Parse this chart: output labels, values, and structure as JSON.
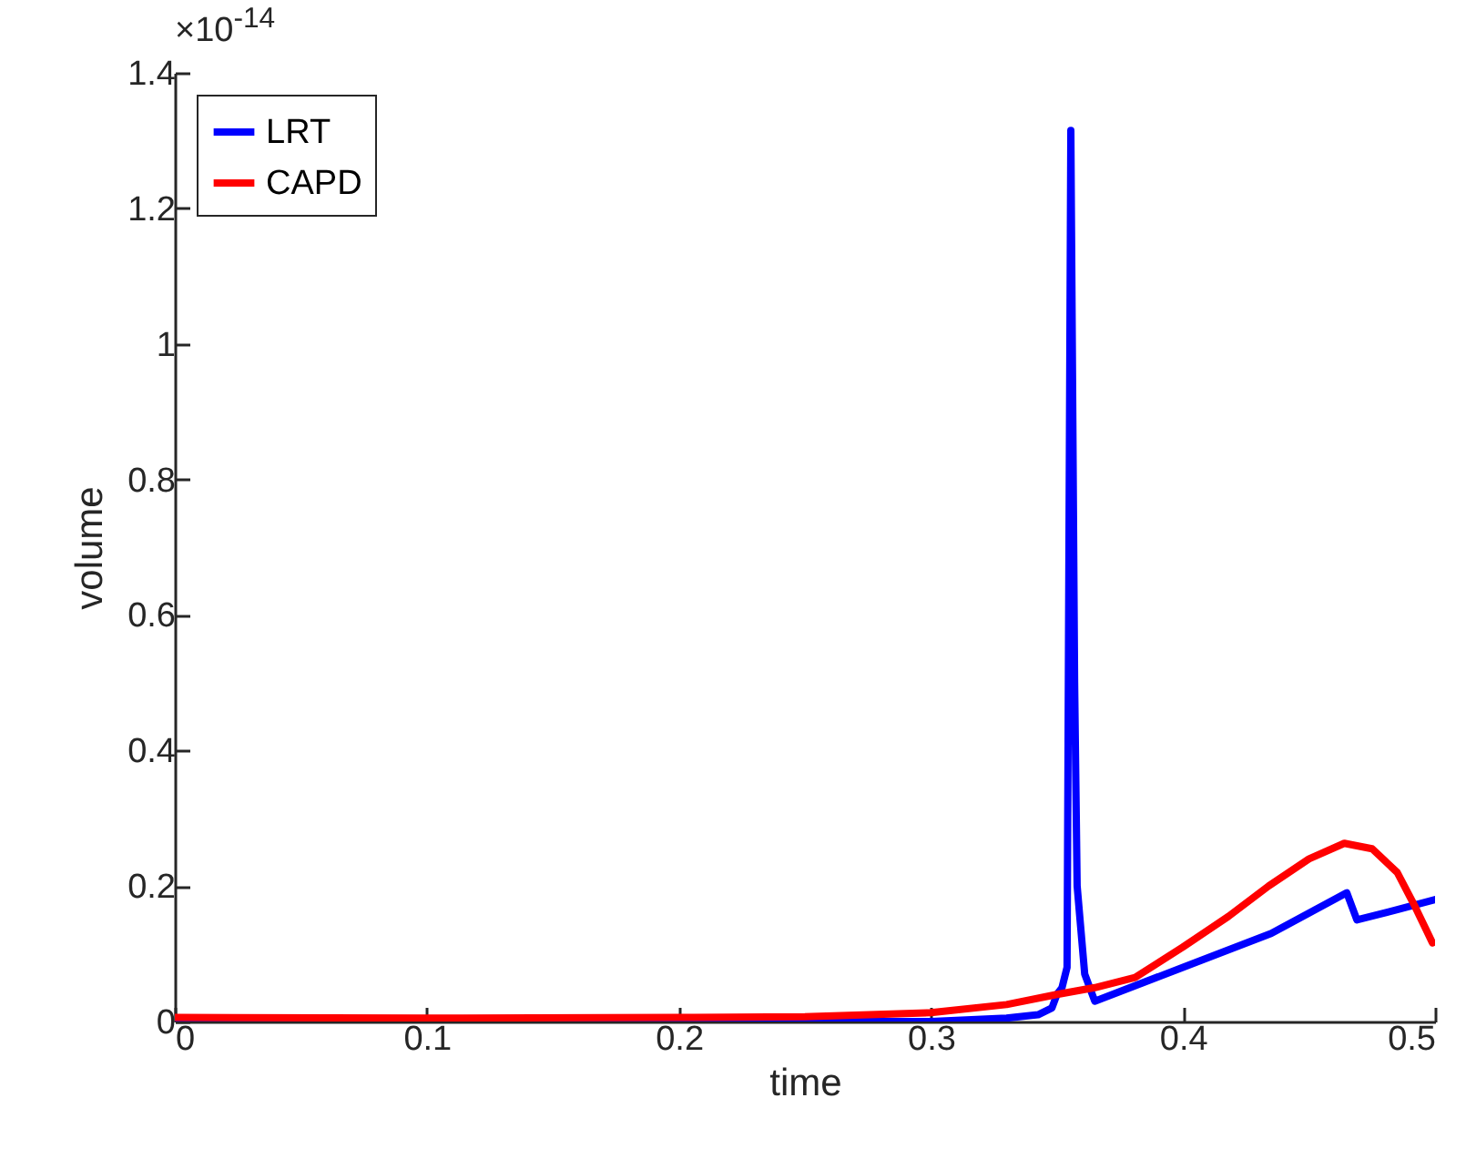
{
  "chart_data": {
    "type": "line",
    "xlabel": "time",
    "ylabel": "volume",
    "annotations": [
      "×10$^{-14}$"
    ],
    "xlim": [
      0,
      0.5
    ],
    "xticks": [
      0,
      0.1,
      0.2,
      0.3,
      0.4,
      0.5
    ],
    "ylim": [
      0,
      1.4
    ],
    "yticks": [
      0,
      0.2,
      0.4,
      0.6,
      0.8,
      1,
      1.2,
      1.4
    ],
    "grid": false,
    "legend": "top left",
    "marker": "none",
    "line_style": "solid",
    "series": [
      {
        "name": "LRT",
        "color": "#0000ff",
        "x": [
          0,
          0.1,
          0.2,
          0.3,
          0.33,
          0.3425,
          0.348,
          0.35,
          0.352,
          0.354,
          0.3555,
          0.357,
          0.358,
          0.361,
          0.365,
          0.4,
          0.435,
          0.465,
          0.466,
          0.469,
          0.485,
          0.5
        ],
        "values": [
          0,
          0,
          0,
          0,
          0.005,
          0.01,
          0.02,
          0.04,
          0.05,
          0.08,
          1.315,
          0.5,
          0.2,
          0.07,
          0.03,
          0.08,
          0.13,
          0.19,
          0.18,
          0.15,
          0.165,
          0.18
        ]
      },
      {
        "name": "CAPD",
        "color": "#ff0000",
        "x": [
          0,
          0.1,
          0.2,
          0.25,
          0.3,
          0.33,
          0.35,
          0.365,
          0.381,
          0.4,
          0.418,
          0.434,
          0.45,
          0.464,
          0.475,
          0.485,
          0.492,
          0.499
        ],
        "values": [
          0.006,
          0.005,
          0.006,
          0.007,
          0.013,
          0.025,
          0.04,
          0.05,
          0.065,
          0.11,
          0.155,
          0.2,
          0.24,
          0.263,
          0.255,
          0.22,
          0.17,
          0.116
        ]
      }
    ]
  }
}
